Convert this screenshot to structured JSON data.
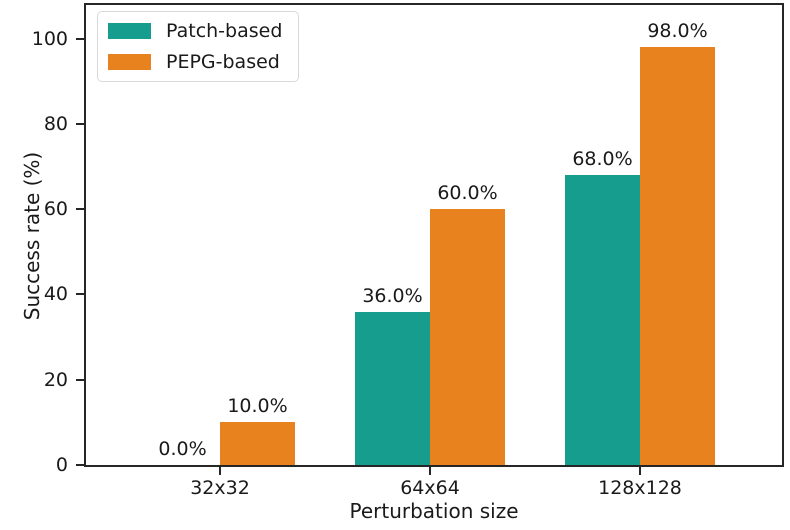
{
  "figure": {
    "background": "#ffffff",
    "spine_color": "#262626",
    "text_color": "#1a1a1a"
  },
  "chart_data": {
    "type": "bar",
    "title": "",
    "xlabel": "Perturbation size",
    "ylabel": "Success rate (%)",
    "categories": [
      "32x32",
      "64x64",
      "128x128"
    ],
    "series": [
      {
        "name": "Patch-based",
        "color": "#169d8d",
        "values": [
          0.0,
          36.0,
          68.0
        ],
        "value_labels": [
          "0.0%",
          "36.0%",
          "68.0%"
        ]
      },
      {
        "name": "PEPG-based",
        "color": "#e8821e",
        "values": [
          10.0,
          60.0,
          98.0
        ],
        "value_labels": [
          "10.0%",
          "60.0%",
          "98.0%"
        ]
      }
    ],
    "yticks": [
      0,
      20,
      40,
      60,
      80,
      100
    ],
    "ylim": [
      0,
      107.9
    ],
    "grid": false,
    "legend_position": "upper-left"
  }
}
